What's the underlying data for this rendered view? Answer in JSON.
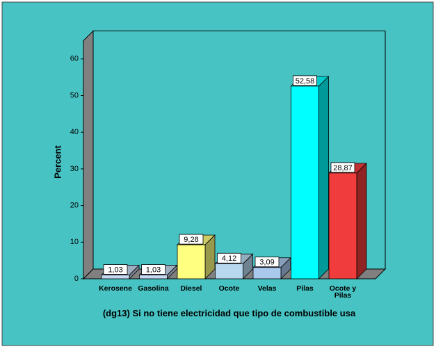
{
  "chart_data": {
    "type": "bar3d",
    "x_label": "(dg13) Si no tiene electricidad que tipo de combustible usa",
    "y_label": "Percent",
    "categories": [
      "Kerosene",
      "Gasolina",
      "Diesel",
      "Ocote",
      "Velas",
      "Pilas",
      "Ocote y Pilas"
    ],
    "values": [
      1.03,
      1.03,
      9.28,
      4.12,
      3.09,
      52.58,
      28.87
    ],
    "value_labels": [
      "1,03",
      "1,03",
      "9,28",
      "4,12",
      "3,09",
      "52,58",
      "28,87"
    ],
    "colors": [
      "#c6d9f1",
      "#c6d9f1",
      "#ffff80",
      "#b8d8f0",
      "#a8c8ec",
      "#00ffff",
      "#f03c3c"
    ],
    "ylim": [
      0,
      65
    ],
    "yticks": [
      0,
      10,
      20,
      30,
      40,
      50,
      60
    ],
    "background": "#48c3c3"
  }
}
